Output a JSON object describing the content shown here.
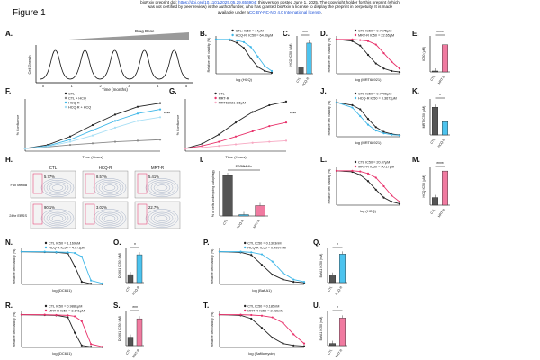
{
  "header": {
    "line1_pre": "bioRxiv preprint doi: ",
    "line1_doi": "https://doi.org/10.1101/2025.05.29.656904",
    "line1_post": "; this version posted June 1, 2025. The copyright holder for this preprint (which",
    "line2": "was not certified by peer review) is the author/funder, who has granted bioRxiv a license to display the preprint in perpetuity. It is made",
    "line3_pre": "available under a",
    "line3_lic": "CC-BY-NC-ND 4.0 International license",
    "line3_post": "."
  },
  "figure_title": "Figure 1",
  "panel_letters": [
    "A.",
    "B.",
    "C.",
    "D.",
    "E.",
    "F.",
    "G.",
    "H.",
    "I.",
    "J.",
    "K.",
    "L.",
    "M.",
    "N.",
    "O.",
    "P.",
    "Q.",
    "R.",
    "S.",
    "T.",
    "U."
  ],
  "colors": {
    "ctl": "#222222",
    "hcqr": "#3fb7e8",
    "mrtr": "#e8326b",
    "bar_ctl": "#555555",
    "bar_hcqr": "#4cc3ee",
    "bar_mrtr": "#f07aa0",
    "lnk": "#1a4fd6"
  },
  "panel_a": {
    "ramp_label": "Drug Dose",
    "y_label": "Cell Growth",
    "x_label": "Time (months)",
    "ticks": [
      "0",
      "1",
      "2",
      "3",
      "4",
      "5"
    ]
  },
  "panel_h": {
    "columns": [
      "CTL",
      "HCQ-R",
      "MRT-R"
    ],
    "rows": [
      "Full Media",
      "24hr EBSS"
    ],
    "values": [
      [
        "5.77%",
        "8.5?%",
        "5.41%"
      ],
      [
        "90.1%",
        "3.02%",
        "22.7%"
      ]
    ]
  },
  "chart_data": [
    {
      "panel": "B",
      "type": "line",
      "xlabel": "log (HCQ)",
      "ylabel": "Relative cell viability (%)",
      "legend": [
        "CTL: IC50 = 14μM",
        "HCQ-R: IC50 = 64.89μM"
      ],
      "series": [
        {
          "name": "CTL",
          "color": "#222222",
          "x": [
            -1,
            0,
            0.5,
            1,
            1.5,
            2,
            2.5,
            3
          ],
          "y": [
            100,
            98,
            90,
            75,
            45,
            20,
            8,
            3
          ]
        },
        {
          "name": "HCQ-R",
          "color": "#3fb7e8",
          "x": [
            -1,
            0,
            0.5,
            1,
            1.5,
            2,
            2.5,
            3
          ],
          "y": [
            100,
            100,
            97,
            92,
            78,
            50,
            22,
            8
          ]
        }
      ]
    },
    {
      "panel": "C",
      "type": "bar",
      "ylabel": "HCQ IC50 (μM)",
      "categories": [
        "CTL",
        "HCQ-R"
      ],
      "values": [
        14,
        64.89
      ],
      "ylim": [
        0,
        80
      ],
      "sig": "***"
    },
    {
      "panel": "D",
      "type": "line",
      "xlabel": "log (MRT68921)",
      "ylabel": "Relative cell viability (%)",
      "legend": [
        "CTL IC50 = 0.7675μM",
        "MRT-R IC50 = 22.65μM"
      ],
      "series": [
        {
          "name": "CTL",
          "color": "#222222",
          "x": [
            -2,
            -1,
            -0.5,
            0,
            0.5,
            1,
            1.5,
            2
          ],
          "y": [
            100,
            95,
            82,
            55,
            30,
            15,
            8,
            5
          ]
        },
        {
          "name": "MRT-R",
          "color": "#e8326b",
          "x": [
            -2,
            -1,
            -0.5,
            0,
            0.5,
            1,
            1.5,
            2
          ],
          "y": [
            100,
            100,
            98,
            95,
            85,
            60,
            35,
            15
          ]
        }
      ]
    },
    {
      "panel": "E",
      "type": "bar",
      "ylabel": "IC50 (μM)",
      "categories": [
        "CTL",
        "MRT-R"
      ],
      "values": [
        0.77,
        22.65
      ],
      "ylim": [
        0,
        30
      ],
      "sig": "****"
    },
    {
      "panel": "F",
      "type": "line",
      "xlabel": "Time (Hours)",
      "ylabel": "% Confluence",
      "legend": [
        "CTL",
        "CTL + HCQ",
        "HCQ-R",
        "HCQ-R + HCQ"
      ],
      "sig": "****",
      "series": [
        {
          "name": "CTL",
          "color": "#222222",
          "x": [
            0,
            24,
            48,
            72,
            96,
            120,
            144
          ],
          "y": [
            5,
            12,
            28,
            50,
            70,
            85,
            92
          ]
        },
        {
          "name": "CTL + HCQ",
          "color": "#888888",
          "x": [
            0,
            24,
            48,
            72,
            96,
            120,
            144
          ],
          "y": [
            5,
            8,
            12,
            15,
            18,
            20,
            22
          ]
        },
        {
          "name": "HCQ-R",
          "color": "#3fb7e8",
          "x": [
            0,
            24,
            48,
            72,
            96,
            120,
            144
          ],
          "y": [
            5,
            10,
            22,
            40,
            58,
            72,
            80
          ]
        },
        {
          "name": "HCQ-R + HCQ",
          "color": "#a8dff5",
          "x": [
            0,
            24,
            48,
            72,
            96,
            120,
            144
          ],
          "y": [
            5,
            9,
            18,
            30,
            45,
            58,
            65
          ]
        }
      ]
    },
    {
      "panel": "G",
      "type": "line",
      "xlabel": "Time (Hours)",
      "ylabel": "% Confluence",
      "legend": [
        "CTL",
        "MRT-R",
        "MRT68921 1.5μM"
      ],
      "sig": "****",
      "series": [
        {
          "name": "CTL",
          "color": "#222222",
          "x": [
            0,
            24,
            48,
            72,
            96,
            120,
            144
          ],
          "y": [
            5,
            14,
            32,
            55,
            75,
            88,
            95
          ]
        },
        {
          "name": "MRT-R",
          "color": "#e8326b",
          "x": [
            0,
            24,
            48,
            72,
            96,
            120,
            144
          ],
          "y": [
            5,
            10,
            18,
            28,
            38,
            48,
            55
          ]
        },
        {
          "name": "MRT68921 1.5μM",
          "color": "#f7a8c2",
          "x": [
            0,
            24,
            48,
            72,
            96,
            120,
            144
          ],
          "y": [
            5,
            7,
            10,
            13,
            16,
            18,
            20
          ]
        }
      ]
    },
    {
      "panel": "I",
      "type": "bar",
      "title": "EBSS 24hr",
      "ylabel": "% of cells undergoing autophagy",
      "categories": [
        "CTL",
        "HCQ-R",
        "MRT-R"
      ],
      "values": [
        90,
        3,
        23
      ],
      "ylim": [
        0,
        100
      ],
      "sig": "**"
    },
    {
      "panel": "J",
      "type": "line",
      "xlabel": "log (MRT68921)",
      "ylabel": "Relative cell viability (%)",
      "legend": [
        "CTL IC50 = 0.7706μM",
        "HCQ-R IC50 = 0.3672μM"
      ],
      "series": [
        {
          "name": "CTL",
          "color": "#222222",
          "x": [
            -2,
            -1,
            -0.5,
            0,
            0.5,
            1,
            1.5,
            2
          ],
          "y": [
            100,
            92,
            80,
            52,
            28,
            14,
            8,
            5
          ]
        },
        {
          "name": "HCQ-R",
          "color": "#3fb7e8",
          "x": [
            -2,
            -1,
            -0.5,
            0,
            0.5,
            1,
            1.5,
            2
          ],
          "y": [
            100,
            85,
            60,
            35,
            18,
            10,
            6,
            4
          ]
        }
      ]
    },
    {
      "panel": "K",
      "type": "bar",
      "ylabel": "MRT IC50 (μM)",
      "categories": [
        "CTL",
        "HCQ-R"
      ],
      "values": [
        0.77,
        0.37
      ],
      "ylim": [
        0,
        1
      ],
      "sig": "*"
    },
    {
      "panel": "L",
      "type": "line",
      "xlabel": "log (HCQ)",
      "ylabel": "Relative cell viability (%)",
      "legend": [
        "CTL IC50 = 20.07μM",
        "MRT-R IC50 = 90.17μM"
      ],
      "series": [
        {
          "name": "CTL",
          "color": "#222222",
          "x": [
            -1,
            0,
            0.5,
            1,
            1.5,
            2,
            2.5,
            3
          ],
          "y": [
            100,
            97,
            88,
            70,
            45,
            22,
            10,
            4
          ]
        },
        {
          "name": "MRT-R",
          "color": "#e8326b",
          "x": [
            -1,
            0,
            0.5,
            1,
            1.5,
            2,
            2.5,
            3
          ],
          "y": [
            100,
            100,
            98,
            92,
            80,
            55,
            28,
            10
          ]
        }
      ]
    },
    {
      "panel": "M",
      "type": "bar",
      "ylabel": "HCQ IC50 (μM)",
      "categories": [
        "CTL",
        "MRT-R"
      ],
      "values": [
        20.07,
        90.17
      ],
      "ylim": [
        0,
        100
      ],
      "sig": "****"
    },
    {
      "panel": "N",
      "type": "line",
      "xlabel": "log (DC661)",
      "ylabel": "Relative cell viability (%)",
      "legend": [
        "CTL IC50 = 1.169μM",
        "HCQ-R IC50 = 4.071μM"
      ],
      "series": [
        {
          "name": "CTL",
          "color": "#222222",
          "x": [
            -2,
            -1,
            -0.5,
            0,
            0.3,
            0.6,
            1,
            1.5
          ],
          "y": [
            100,
            99,
            98,
            95,
            55,
            8,
            2,
            1
          ]
        },
        {
          "name": "HCQ-R",
          "color": "#3fb7e8",
          "x": [
            -2,
            -1,
            -0.5,
            0,
            0.3,
            0.6,
            1,
            1.5
          ],
          "y": [
            100,
            100,
            99,
            98,
            96,
            85,
            12,
            3
          ]
        }
      ]
    },
    {
      "panel": "O",
      "type": "bar",
      "ylabel": "DC661 IC50 (μM)",
      "categories": [
        "CTL",
        "HCQ-R"
      ],
      "values": [
        1.17,
        4.07
      ],
      "ylim": [
        0,
        5
      ],
      "sig": "*"
    },
    {
      "panel": "P",
      "type": "line",
      "xlabel": "log (Baf-A1)",
      "ylabel": "Relative cell viability (%)",
      "legend": [
        "CTL IC50 = 0.1303nM",
        "HCQ-R IC50 = 0.4997nM"
      ],
      "series": [
        {
          "name": "CTL",
          "color": "#222222",
          "x": [
            -3,
            -2,
            -1.5,
            -1,
            -0.5,
            0,
            0.5,
            1
          ],
          "y": [
            100,
            98,
            90,
            60,
            30,
            15,
            8,
            5
          ]
        },
        {
          "name": "HCQ-R",
          "color": "#3fb7e8",
          "x": [
            -3,
            -2,
            -1.5,
            -1,
            -0.5,
            0,
            0.5,
            1
          ],
          "y": [
            100,
            100,
            98,
            92,
            70,
            35,
            15,
            8
          ]
        }
      ]
    },
    {
      "panel": "Q",
      "type": "bar",
      "ylabel": "BafA1 IC50 (nM)",
      "categories": [
        "CTL",
        "HCQ-R"
      ],
      "values": [
        0.13,
        0.5
      ],
      "ylim": [
        0,
        0.6
      ],
      "sig": "*"
    },
    {
      "panel": "R",
      "type": "line",
      "xlabel": "log (DC661)",
      "ylabel": "Relative cell viability (%)",
      "legend": [
        "CTL IC50 = 0.9881μM",
        "MRT-R IC50 = 3.141μM"
      ],
      "series": [
        {
          "name": "CTL",
          "color": "#222222",
          "x": [
            -2,
            -1,
            -0.5,
            0,
            0.3,
            0.6,
            1,
            1.5
          ],
          "y": [
            100,
            99,
            98,
            92,
            45,
            6,
            2,
            1
          ]
        },
        {
          "name": "MRT-R",
          "color": "#e8326b",
          "x": [
            -2,
            -1,
            -0.5,
            0,
            0.3,
            0.6,
            1,
            1.5
          ],
          "y": [
            100,
            100,
            99,
            98,
            95,
            80,
            10,
            2
          ]
        }
      ]
    },
    {
      "panel": "S",
      "type": "bar",
      "ylabel": "DC661 IC50 (μM)",
      "categories": [
        "CTL",
        "MRT-R"
      ],
      "values": [
        0.99,
        3.14
      ],
      "ylim": [
        0,
        4
      ],
      "sig": "***"
    },
    {
      "panel": "T",
      "type": "line",
      "xlabel": "log (Bafilomycin)",
      "ylabel": "Relative cell viability (%)",
      "legend": [
        "CTL IC50 = 0.185nM",
        "MRT-R IC50 = 2.421nM"
      ],
      "series": [
        {
          "name": "CTL",
          "color": "#222222",
          "x": [
            -3,
            -2,
            -1.5,
            -1,
            -0.5,
            0,
            0.5,
            1
          ],
          "y": [
            100,
            98,
            88,
            60,
            30,
            12,
            6,
            4
          ]
        },
        {
          "name": "MRT-R",
          "color": "#e8326b",
          "x": [
            -3,
            -2,
            -1.5,
            -1,
            -0.5,
            0,
            0.5,
            1
          ],
          "y": [
            100,
            100,
            99,
            97,
            92,
            75,
            40,
            12
          ]
        }
      ]
    },
    {
      "panel": "U",
      "type": "bar",
      "ylabel": "BafA1 IC50 (nM)",
      "categories": [
        "CTL",
        "MRT-R"
      ],
      "values": [
        0.19,
        2.42
      ],
      "ylim": [
        0,
        3
      ],
      "sig": "*"
    }
  ]
}
